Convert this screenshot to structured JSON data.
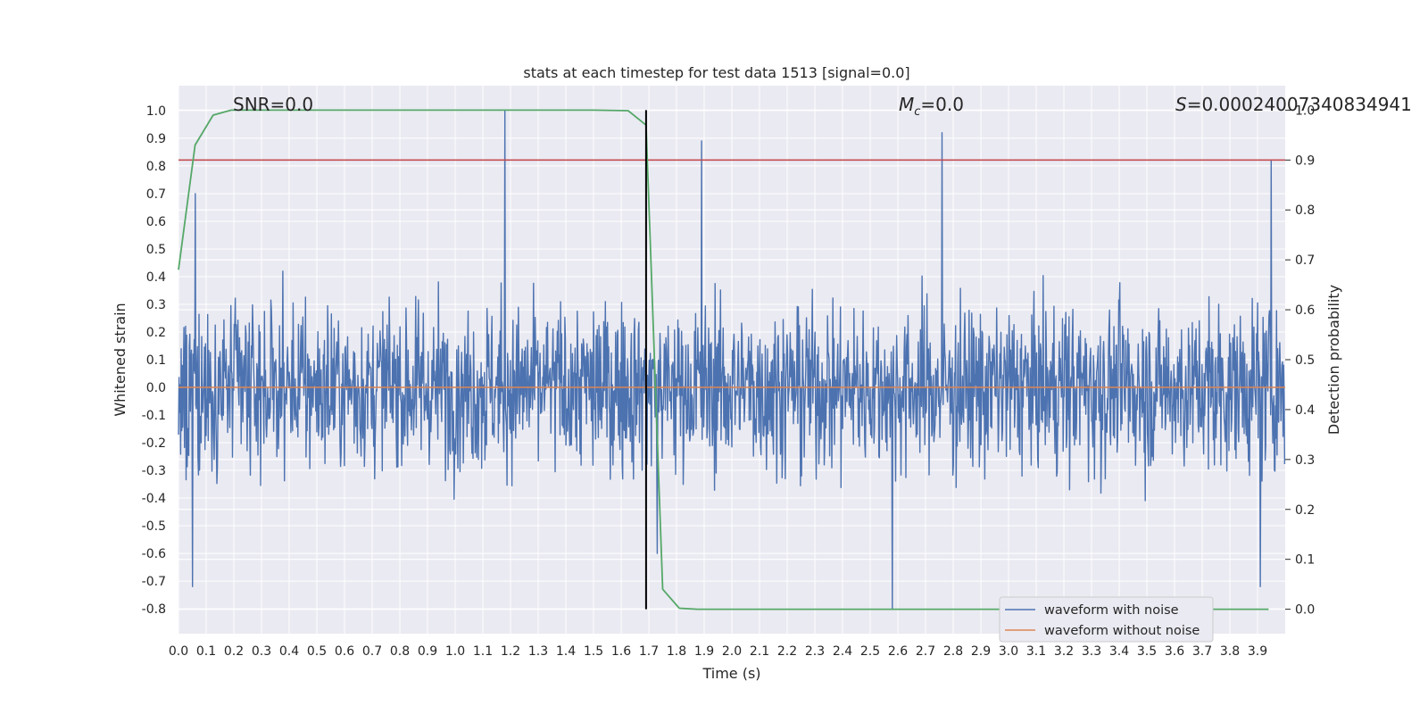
{
  "chart_data": {
    "type": "line",
    "title": "stats at each timestep for test data 1513 [signal=0.0]",
    "xlabel": "Time (s)",
    "ylabel_left": "Whitened strain",
    "ylabel_right": "Detection probability",
    "xlim": [
      0.0,
      4.0
    ],
    "ylim_left": [
      -0.89,
      1.09
    ],
    "ylim_right": [
      -0.049,
      1.049
    ],
    "xticks": [
      "0.0",
      "0.1",
      "0.2",
      "0.3",
      "0.4",
      "0.5",
      "0.6",
      "0.7",
      "0.8",
      "0.9",
      "1.0",
      "1.1",
      "1.2",
      "1.3",
      "1.4",
      "1.5",
      "1.6",
      "1.7",
      "1.8",
      "1.9",
      "2.0",
      "2.1",
      "2.2",
      "2.3",
      "2.4",
      "2.5",
      "2.6",
      "2.7",
      "2.8",
      "2.9",
      "3.0",
      "3.1",
      "3.2",
      "3.3",
      "3.4",
      "3.5",
      "3.6",
      "3.7",
      "3.8",
      "3.9"
    ],
    "yticks_left": [
      "1.0",
      "0.9",
      "0.8",
      "0.7",
      "0.6",
      "0.5",
      "0.4",
      "0.3",
      "0.2",
      "0.1",
      "0.0",
      "-0.1",
      "-0.2",
      "-0.3",
      "-0.4",
      "-0.5",
      "-0.6",
      "-0.7",
      "-0.8"
    ],
    "yticks_right": [
      "1.0",
      "0.9",
      "0.8",
      "0.7",
      "0.6",
      "0.5",
      "0.4",
      "0.3",
      "0.2",
      "0.1",
      "0.0"
    ],
    "grid": true,
    "annotations": {
      "snr": "SNR=0.0",
      "mc_symbol": "M",
      "mc_sub": "c",
      "mc_value": "=0.0",
      "s_symbol": "S",
      "s_value": "=0.00024007340834941"
    },
    "series": [
      {
        "name": "waveform with noise",
        "axis": "left",
        "color": "#4c72b0",
        "description_points": "dense noise, amplitude roughly ±0.5 with spikes up to 1.0 at t≈1.18 and down to -0.8 at t≈2.58",
        "spikes": [
          {
            "x": 0.06,
            "y": 0.7
          },
          {
            "x": 1.18,
            "y": 1.0
          },
          {
            "x": 1.89,
            "y": 0.89
          },
          {
            "x": 2.76,
            "y": 0.92
          },
          {
            "x": 3.95,
            "y": 0.82
          },
          {
            "x": 0.05,
            "y": -0.72
          },
          {
            "x": 2.58,
            "y": -0.8
          },
          {
            "x": 1.73,
            "y": -0.6
          },
          {
            "x": 3.91,
            "y": -0.72
          }
        ]
      },
      {
        "name": "waveform without noise",
        "axis": "left",
        "color": "#dd8452",
        "x": [
          0.0,
          4.0
        ],
        "y": [
          0.0,
          0.0
        ]
      },
      {
        "name": "detection probability",
        "axis": "right",
        "color": "#55a868",
        "x": [
          0.0,
          0.06,
          0.125,
          0.19,
          0.25,
          0.5,
          1.0,
          1.5,
          1.625,
          1.69,
          1.75,
          1.81,
          1.875,
          2.0,
          3.94
        ],
        "y": [
          0.68,
          0.93,
          0.99,
          1.0,
          1.0,
          1.0,
          1.0,
          1.0,
          0.999,
          0.97,
          0.04,
          0.002,
          0.0,
          0.0,
          0.0
        ]
      }
    ],
    "threshold": {
      "axis": "right",
      "y": 0.9,
      "color": "#c44e52"
    },
    "marker_line": {
      "x": 1.69,
      "color": "#000000"
    }
  }
}
